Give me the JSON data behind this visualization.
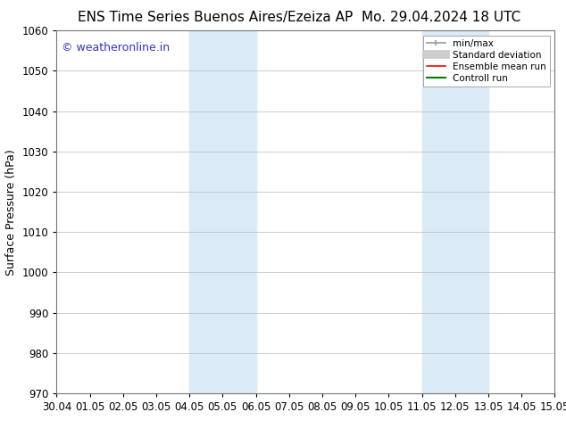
{
  "title_left": "ENS Time Series Buenos Aires/Ezeiza AP",
  "title_right": "Mo. 29.04.2024 18 UTC",
  "ylabel": "Surface Pressure (hPa)",
  "ylim": [
    970,
    1060
  ],
  "yticks": [
    970,
    980,
    990,
    1000,
    1010,
    1020,
    1030,
    1040,
    1050,
    1060
  ],
  "x_labels": [
    "30.04",
    "01.05",
    "02.05",
    "03.05",
    "04.05",
    "05.05",
    "06.05",
    "07.05",
    "08.05",
    "09.05",
    "10.05",
    "11.05",
    "12.05",
    "13.05",
    "14.05",
    "15.05"
  ],
  "x_values": [
    0,
    1,
    2,
    3,
    4,
    5,
    6,
    7,
    8,
    9,
    10,
    11,
    12,
    13,
    14,
    15
  ],
  "xlim": [
    0,
    15
  ],
  "shaded_regions": [
    {
      "xmin": 4.0,
      "xmax": 6.0
    },
    {
      "xmin": 11.0,
      "xmax": 13.0
    }
  ],
  "shade_color": "#daeaf7",
  "watermark_text": "© weatheronline.in",
  "watermark_color": "#3333cc",
  "watermark_fontsize": 9,
  "title_fontsize": 11,
  "tick_fontsize": 8.5,
  "ylabel_fontsize": 9,
  "background_color": "#ffffff",
  "grid_color": "#bbbbbb",
  "legend_items": [
    {
      "label": "min/max",
      "color": "#999999",
      "lw": 1.2,
      "style": "caps"
    },
    {
      "label": "Standard deviation",
      "color": "#cccccc",
      "lw": 7,
      "style": "line"
    },
    {
      "label": "Ensemble mean run",
      "color": "#ff0000",
      "lw": 1.2,
      "style": "line"
    },
    {
      "label": "Controll run",
      "color": "#008000",
      "lw": 1.5,
      "style": "line"
    }
  ]
}
